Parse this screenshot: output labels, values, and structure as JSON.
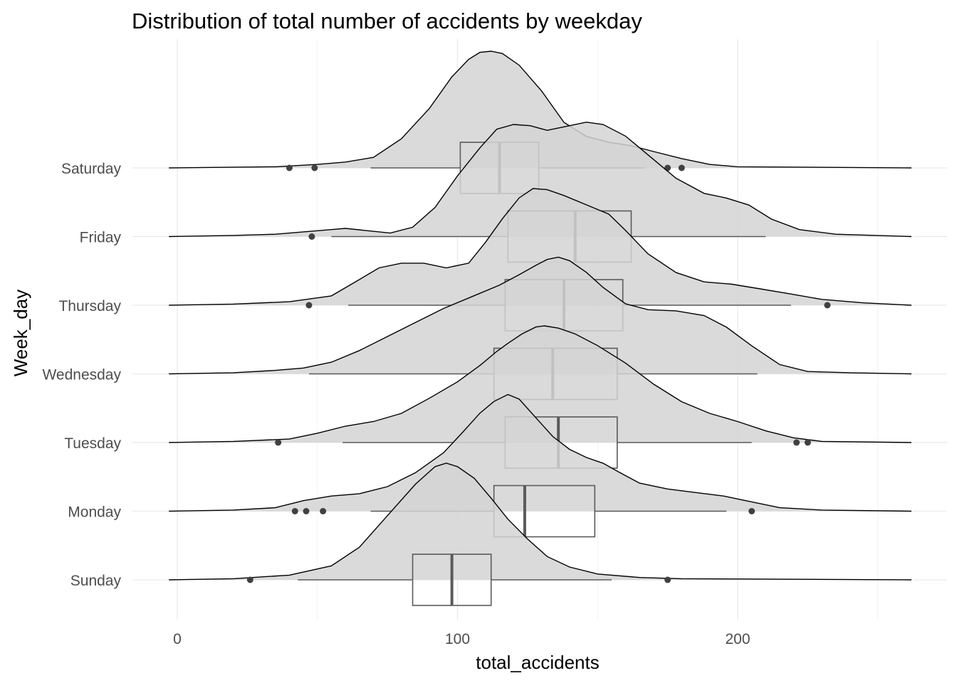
{
  "chart_data": {
    "type": "ridgeline-boxplot",
    "title": "Distribution of total number of accidents by weekday",
    "xlabel": "total_accidents",
    "ylabel": "Week_day",
    "xlim": [
      -3,
      262
    ],
    "x_ticks": [
      0,
      100,
      200
    ],
    "grid": true,
    "legend": "none",
    "fill_color": "#d3d3d3",
    "fill_opacity": 0.85,
    "line_color": "#000000",
    "box_color": "#5a5a5a",
    "point_color": "#404040",
    "density_scale": 1.7,
    "categories": [
      "Sunday",
      "Monday",
      "Tuesday",
      "Wednesday",
      "Thursday",
      "Friday",
      "Saturday"
    ],
    "series": [
      {
        "name": "Sunday",
        "density": [
          [
            -3,
            0
          ],
          [
            20,
            0.01
          ],
          [
            40,
            0.04
          ],
          [
            55,
            0.12
          ],
          [
            65,
            0.28
          ],
          [
            75,
            0.55
          ],
          [
            85,
            0.82
          ],
          [
            92,
            0.97
          ],
          [
            96,
            1.0
          ],
          [
            100,
            0.97
          ],
          [
            106,
            0.87
          ],
          [
            112,
            0.7
          ],
          [
            118,
            0.52
          ],
          [
            125,
            0.35
          ],
          [
            132,
            0.2
          ],
          [
            140,
            0.11
          ],
          [
            150,
            0.05
          ],
          [
            165,
            0.02
          ],
          [
            180,
            0.01
          ],
          [
            262,
            0
          ]
        ],
        "box": {
          "q1": 84,
          "median": 98,
          "q3": 112,
          "whisker_low": 43,
          "whisker_high": 155
        },
        "outliers": [
          26,
          175
        ]
      },
      {
        "name": "Monday",
        "density": [
          [
            -3,
            0
          ],
          [
            20,
            0.01
          ],
          [
            35,
            0.03
          ],
          [
            45,
            0.09
          ],
          [
            55,
            0.13
          ],
          [
            65,
            0.15
          ],
          [
            75,
            0.21
          ],
          [
            85,
            0.33
          ],
          [
            95,
            0.5
          ],
          [
            102,
            0.68
          ],
          [
            108,
            0.84
          ],
          [
            113,
            0.94
          ],
          [
            118,
            1.0
          ],
          [
            122,
            0.96
          ],
          [
            128,
            0.8
          ],
          [
            134,
            0.64
          ],
          [
            140,
            0.53
          ],
          [
            146,
            0.46
          ],
          [
            152,
            0.41
          ],
          [
            158,
            0.33
          ],
          [
            165,
            0.24
          ],
          [
            175,
            0.19
          ],
          [
            185,
            0.16
          ],
          [
            195,
            0.13
          ],
          [
            205,
            0.08
          ],
          [
            215,
            0.03
          ],
          [
            230,
            0.01
          ],
          [
            262,
            0
          ]
        ],
        "box": {
          "q1": 113,
          "median": 124,
          "q3": 149,
          "whisker_low": 69,
          "whisker_high": 196
        },
        "outliers": [
          42,
          46,
          52,
          205
        ]
      },
      {
        "name": "Tuesday",
        "density": [
          [
            -3,
            0
          ],
          [
            20,
            0.01
          ],
          [
            40,
            0.03
          ],
          [
            50,
            0.08
          ],
          [
            60,
            0.14
          ],
          [
            70,
            0.18
          ],
          [
            80,
            0.25
          ],
          [
            90,
            0.38
          ],
          [
            100,
            0.52
          ],
          [
            108,
            0.66
          ],
          [
            114,
            0.78
          ],
          [
            118,
            0.85
          ],
          [
            123,
            0.93
          ],
          [
            128,
            0.99
          ],
          [
            131,
            1.0
          ],
          [
            136,
            0.98
          ],
          [
            142,
            0.93
          ],
          [
            150,
            0.83
          ],
          [
            160,
            0.68
          ],
          [
            170,
            0.5
          ],
          [
            180,
            0.35
          ],
          [
            190,
            0.25
          ],
          [
            200,
            0.18
          ],
          [
            210,
            0.1
          ],
          [
            220,
            0.04
          ],
          [
            230,
            0.01
          ],
          [
            262,
            0
          ]
        ],
        "box": {
          "q1": 117,
          "median": 136,
          "q3": 157,
          "whisker_low": 59,
          "whisker_high": 205
        },
        "outliers": [
          36,
          221,
          225
        ]
      },
      {
        "name": "Wednesday",
        "density": [
          [
            -3,
            0
          ],
          [
            20,
            0.01
          ],
          [
            35,
            0.03
          ],
          [
            45,
            0.05
          ],
          [
            55,
            0.1
          ],
          [
            65,
            0.2
          ],
          [
            75,
            0.32
          ],
          [
            85,
            0.44
          ],
          [
            95,
            0.56
          ],
          [
            105,
            0.66
          ],
          [
            115,
            0.76
          ],
          [
            122,
            0.85
          ],
          [
            128,
            0.93
          ],
          [
            132,
            0.98
          ],
          [
            136,
            1.0
          ],
          [
            140,
            0.97
          ],
          [
            146,
            0.87
          ],
          [
            152,
            0.74
          ],
          [
            160,
            0.6
          ],
          [
            168,
            0.55
          ],
          [
            178,
            0.54
          ],
          [
            188,
            0.5
          ],
          [
            196,
            0.4
          ],
          [
            205,
            0.24
          ],
          [
            215,
            0.08
          ],
          [
            225,
            0.02
          ],
          [
            240,
            0.01
          ],
          [
            262,
            0
          ]
        ],
        "box": {
          "q1": 113,
          "median": 134,
          "q3": 157,
          "whisker_low": 47,
          "whisker_high": 207
        },
        "outliers": []
      },
      {
        "name": "Thursday",
        "density": [
          [
            -3,
            0
          ],
          [
            20,
            0.01
          ],
          [
            40,
            0.03
          ],
          [
            55,
            0.08
          ],
          [
            65,
            0.22
          ],
          [
            72,
            0.32
          ],
          [
            80,
            0.36
          ],
          [
            88,
            0.36
          ],
          [
            96,
            0.32
          ],
          [
            104,
            0.36
          ],
          [
            110,
            0.54
          ],
          [
            116,
            0.74
          ],
          [
            122,
            0.92
          ],
          [
            127,
            1.0
          ],
          [
            132,
            0.99
          ],
          [
            138,
            0.94
          ],
          [
            146,
            0.86
          ],
          [
            154,
            0.78
          ],
          [
            160,
            0.64
          ],
          [
            168,
            0.44
          ],
          [
            178,
            0.28
          ],
          [
            188,
            0.2
          ],
          [
            198,
            0.18
          ],
          [
            208,
            0.14
          ],
          [
            218,
            0.1
          ],
          [
            230,
            0.05
          ],
          [
            245,
            0.02
          ],
          [
            262,
            0
          ]
        ],
        "box": {
          "q1": 117,
          "median": 138,
          "q3": 159,
          "whisker_low": 61,
          "whisker_high": 219
        },
        "outliers": [
          47,
          232
        ]
      },
      {
        "name": "Friday",
        "density": [
          [
            -3,
            0
          ],
          [
            20,
            0.01
          ],
          [
            35,
            0.02
          ],
          [
            45,
            0.04
          ],
          [
            50,
            0.05
          ],
          [
            55,
            0.06
          ],
          [
            60,
            0.07
          ],
          [
            68,
            0.05
          ],
          [
            76,
            0.03
          ],
          [
            84,
            0.08
          ],
          [
            92,
            0.25
          ],
          [
            100,
            0.52
          ],
          [
            108,
            0.76
          ],
          [
            114,
            0.92
          ],
          [
            120,
            0.96
          ],
          [
            126,
            0.95
          ],
          [
            132,
            0.91
          ],
          [
            140,
            0.95
          ],
          [
            146,
            0.98
          ],
          [
            152,
            0.96
          ],
          [
            160,
            0.86
          ],
          [
            168,
            0.7
          ],
          [
            178,
            0.5
          ],
          [
            188,
            0.37
          ],
          [
            196,
            0.33
          ],
          [
            204,
            0.27
          ],
          [
            212,
            0.15
          ],
          [
            222,
            0.06
          ],
          [
            235,
            0.02
          ],
          [
            262,
            0
          ]
        ],
        "box": {
          "q1": 118,
          "median": 142,
          "q3": 162,
          "whisker_low": 55,
          "whisker_high": 210
        },
        "outliers": [
          48
        ]
      },
      {
        "name": "Saturday",
        "density": [
          [
            -3,
            0
          ],
          [
            15,
            0.005
          ],
          [
            35,
            0.01
          ],
          [
            50,
            0.03
          ],
          [
            60,
            0.05
          ],
          [
            70,
            0.09
          ],
          [
            80,
            0.25
          ],
          [
            90,
            0.51
          ],
          [
            98,
            0.78
          ],
          [
            104,
            0.93
          ],
          [
            108,
            0.99
          ],
          [
            112,
            1.0
          ],
          [
            116,
            0.98
          ],
          [
            122,
            0.88
          ],
          [
            130,
            0.66
          ],
          [
            138,
            0.39
          ],
          [
            146,
            0.27
          ],
          [
            154,
            0.22
          ],
          [
            162,
            0.19
          ],
          [
            170,
            0.14
          ],
          [
            180,
            0.08
          ],
          [
            190,
            0.03
          ],
          [
            200,
            0.01
          ],
          [
            262,
            0
          ]
        ],
        "box": {
          "q1": 101,
          "median": 115,
          "q3": 129,
          "whisker_low": 69,
          "whisker_high": 167
        },
        "outliers": [
          40,
          49,
          175,
          180
        ]
      }
    ]
  }
}
